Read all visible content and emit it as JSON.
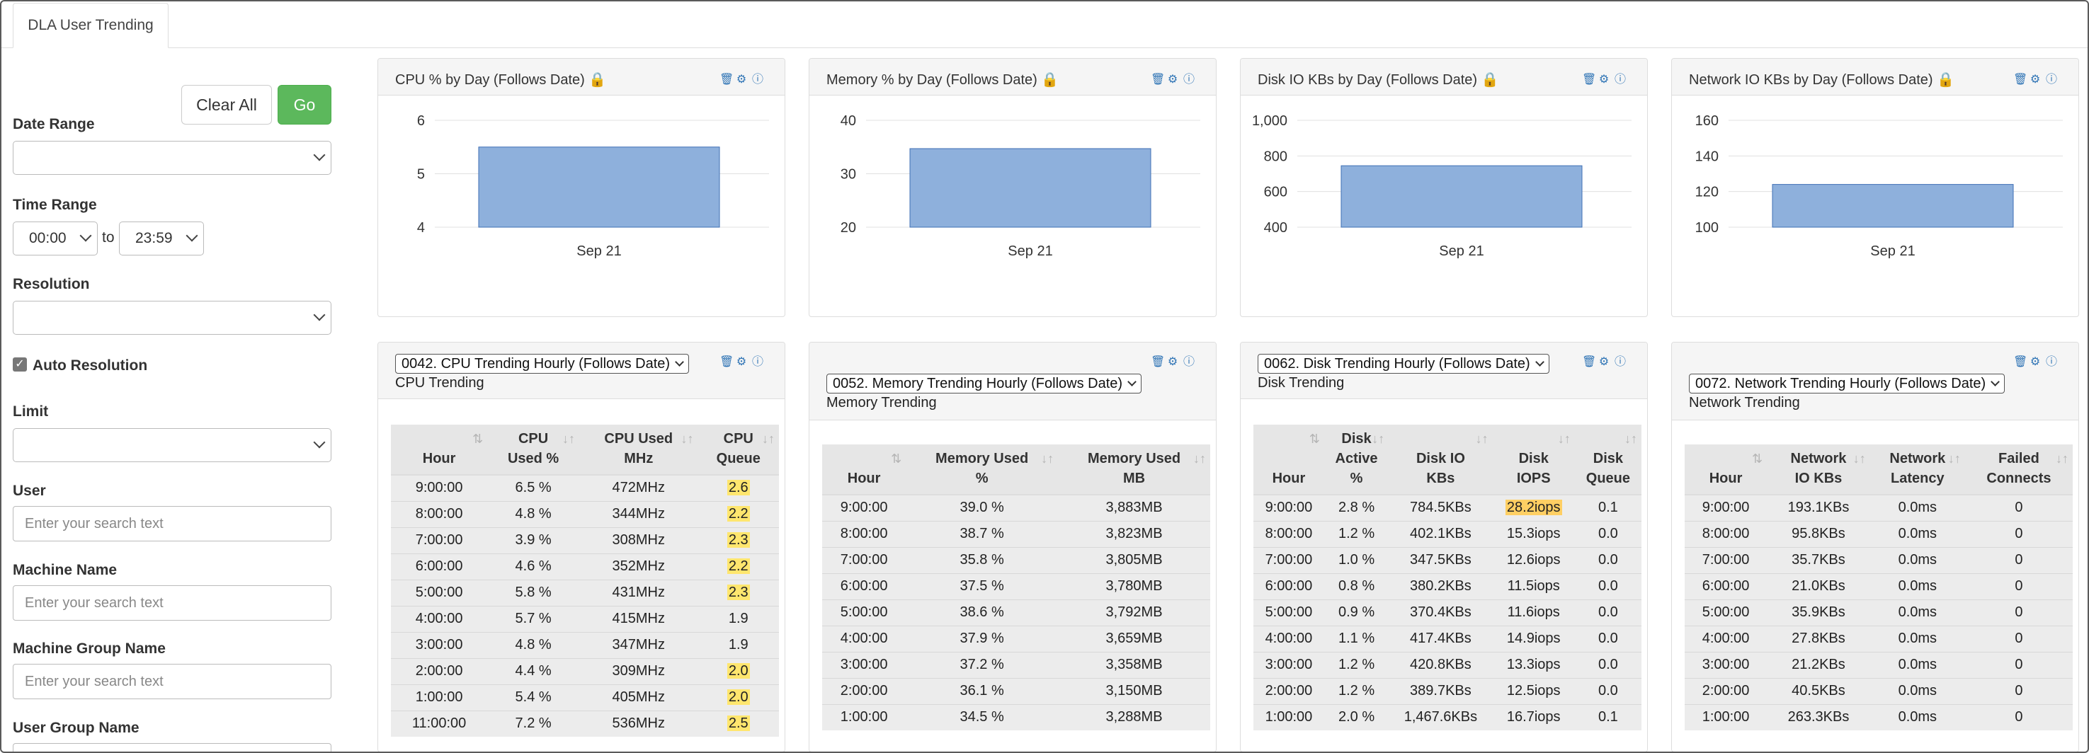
{
  "tab": {
    "label": "DLA User Trending"
  },
  "sidebar": {
    "clear_label": "Clear All",
    "go_label": "Go",
    "date_range_label": "Date Range",
    "date_range_value": "",
    "time_range_label": "Time Range",
    "time_from": "00:00",
    "time_to_word": "to",
    "time_to": "23:59",
    "resolution_label": "Resolution",
    "resolution_value": "",
    "auto_resolution_label": "Auto Resolution",
    "auto_resolution_checked": true,
    "limit_label": "Limit",
    "limit_value": "",
    "user_label": "User",
    "user_placeholder": "Enter your search text",
    "machine_name_label": "Machine Name",
    "machine_name_placeholder": "Enter your search text",
    "machine_group_label": "Machine Group Name",
    "machine_group_placeholder": "Enter your search text",
    "user_group_label": "User Group Name"
  },
  "colors": {
    "bar_fill": "#8eb0dc",
    "bar_stroke": "#3f6fb5",
    "go_button": "#5cb85c",
    "icon_blue": "#2f74b5",
    "highlight_yellow": "#ffe66e",
    "highlight_orange": "#ffcf63"
  },
  "charts": [
    {
      "title": "CPU % by Day (Follows Date)"
    },
    {
      "title": "Memory % by Day (Follows Date)"
    },
    {
      "title": "Disk IO KBs by Day (Follows Date)"
    },
    {
      "title": "Network IO KBs by Day (Follows Date)"
    }
  ],
  "chart_data": [
    {
      "type": "bar",
      "title": "CPU % by Day (Follows Date)",
      "categories": [
        "Sep 21"
      ],
      "values": [
        5.5
      ],
      "ylim": [
        4,
        6
      ],
      "yticks": [
        "4",
        "5",
        "6"
      ],
      "grid": true
    },
    {
      "type": "bar",
      "title": "Memory % by Day (Follows Date)",
      "categories": [
        "Sep 21"
      ],
      "values": [
        34.7
      ],
      "ylim": [
        20,
        40
      ],
      "yticks": [
        "20",
        "30",
        "40"
      ],
      "grid": true
    },
    {
      "type": "bar",
      "title": "Disk IO KBs by Day (Follows Date)",
      "categories": [
        "Sep 21"
      ],
      "values": [
        745
      ],
      "ylim": [
        400,
        1000
      ],
      "yticks": [
        "400",
        "600",
        "800",
        "1,000"
      ],
      "grid": true
    },
    {
      "type": "bar",
      "title": "Network IO KBs by Day (Follows Date)",
      "categories": [
        "Sep 21"
      ],
      "values": [
        124
      ],
      "ylim": [
        100,
        160
      ],
      "yticks": [
        "100",
        "120",
        "140",
        "160"
      ],
      "grid": true
    }
  ],
  "tables": [
    {
      "dropdown": "0042. CPU Trending Hourly (Follows Date)",
      "subtitle": "CPU Trending",
      "headers": [
        "Hour",
        "CPU\nUsed %",
        "CPU Used\nMHz",
        "CPU\nQueue"
      ],
      "rows": [
        [
          "9:00:00",
          "6.5 %",
          "472MHz",
          "2.6"
        ],
        [
          "8:00:00",
          "4.8 %",
          "344MHz",
          "2.2"
        ],
        [
          "7:00:00",
          "3.9 %",
          "308MHz",
          "2.3"
        ],
        [
          "6:00:00",
          "4.6 %",
          "352MHz",
          "2.2"
        ],
        [
          "5:00:00",
          "5.8 %",
          "431MHz",
          "2.3"
        ],
        [
          "4:00:00",
          "5.7 %",
          "415MHz",
          "1.9"
        ],
        [
          "3:00:00",
          "4.8 %",
          "347MHz",
          "1.9"
        ],
        [
          "2:00:00",
          "4.4 %",
          "309MHz",
          "2.0"
        ],
        [
          "1:00:00",
          "5.4 %",
          "405MHz",
          "2.0"
        ],
        [
          "11:00:00",
          "7.2 %",
          "536MHz",
          "2.5"
        ]
      ]
    },
    {
      "dropdown": "0052. Memory Trending Hourly (Follows Date)",
      "subtitle": "Memory Trending",
      "headers": [
        "Hour",
        "Memory Used\n%",
        "Memory Used\nMB"
      ],
      "rows": [
        [
          "9:00:00",
          "39.0 %",
          "3,883MB"
        ],
        [
          "8:00:00",
          "38.7 %",
          "3,823MB"
        ],
        [
          "7:00:00",
          "35.8 %",
          "3,805MB"
        ],
        [
          "6:00:00",
          "37.5 %",
          "3,780MB"
        ],
        [
          "5:00:00",
          "38.6 %",
          "3,792MB"
        ],
        [
          "4:00:00",
          "37.9 %",
          "3,659MB"
        ],
        [
          "3:00:00",
          "37.2 %",
          "3,358MB"
        ],
        [
          "2:00:00",
          "36.1 %",
          "3,150MB"
        ],
        [
          "1:00:00",
          "34.5 %",
          "3,288MB"
        ]
      ]
    },
    {
      "dropdown": "0062. Disk Trending Hourly (Follows Date)",
      "subtitle": "Disk Trending",
      "headers": [
        "Hour",
        "Disk\nActive\n%",
        "Disk IO\nKBs",
        "Disk\nIOPS",
        "Disk\nQueue"
      ],
      "rows": [
        [
          "9:00:00",
          "2.8 %",
          "784.5KBs",
          "28.2iops",
          "0.1"
        ],
        [
          "8:00:00",
          "1.2 %",
          "402.1KBs",
          "15.3iops",
          "0.0"
        ],
        [
          "7:00:00",
          "1.0 %",
          "347.5KBs",
          "12.6iops",
          "0.0"
        ],
        [
          "6:00:00",
          "0.8 %",
          "380.2KBs",
          "11.5iops",
          "0.0"
        ],
        [
          "5:00:00",
          "0.9 %",
          "370.4KBs",
          "11.6iops",
          "0.0"
        ],
        [
          "4:00:00",
          "1.1 %",
          "417.4KBs",
          "14.9iops",
          "0.0"
        ],
        [
          "3:00:00",
          "1.2 %",
          "420.8KBs",
          "13.3iops",
          "0.0"
        ],
        [
          "2:00:00",
          "1.2 %",
          "389.7KBs",
          "12.5iops",
          "0.0"
        ],
        [
          "1:00:00",
          "2.0 %",
          "1,467.6KBs",
          "16.7iops",
          "0.1"
        ]
      ]
    },
    {
      "dropdown": "0072. Network Trending Hourly (Follows Date)",
      "subtitle": "Network Trending",
      "headers": [
        "Hour",
        "Network\nIO KBs",
        "Network\nLatency",
        "Failed\nConnects"
      ],
      "rows": [
        [
          "9:00:00",
          "193.1KBs",
          "0.0ms",
          "0"
        ],
        [
          "8:00:00",
          "95.8KBs",
          "0.0ms",
          "0"
        ],
        [
          "7:00:00",
          "35.7KBs",
          "0.0ms",
          "0"
        ],
        [
          "6:00:00",
          "21.0KBs",
          "0.0ms",
          "0"
        ],
        [
          "5:00:00",
          "35.9KBs",
          "0.0ms",
          "0"
        ],
        [
          "4:00:00",
          "27.8KBs",
          "0.0ms",
          "0"
        ],
        [
          "3:00:00",
          "21.2KBs",
          "0.0ms",
          "0"
        ],
        [
          "2:00:00",
          "40.5KBs",
          "0.0ms",
          "0"
        ],
        [
          "1:00:00",
          "263.3KBs",
          "0.0ms",
          "0"
        ]
      ]
    }
  ]
}
